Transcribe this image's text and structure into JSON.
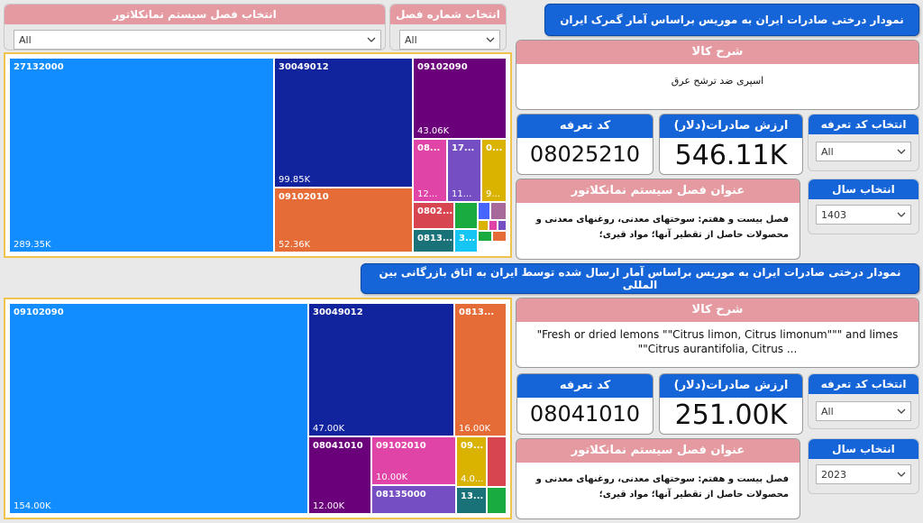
{
  "filters_top": {
    "nomenclature_label": "انتخاب فصل سیستم نمانکلاتور",
    "nomenclature_value": "All",
    "chapter_label": "انتخاب شماره فصل",
    "chapter_value": "All"
  },
  "top_section": {
    "title": "نمودار درختی صادرات ایران به موریس براساس آمار گمرک ایران",
    "goods_desc_label": "شرح کالا",
    "goods_desc_value": "اسپری ضد ترشح عرق",
    "tariff_code_label": "کد تعرفه",
    "tariff_code_value": "08025210",
    "export_value_label": "ارزش صادرات(دلار)",
    "export_value_value": "546.11K",
    "select_tariff_label": "انتخاب کد تعرفه",
    "select_tariff_value": "All",
    "chapter_title_label": "عنوان فصل سیستم نمانکلاتور",
    "chapter_title_value": "فصل بیست و هفتم: سوختهای معدنی، روغنهای معدنی و محصولات حاصل از تقطیر آنها؛ مواد قیری؛",
    "select_year_label": "انتخاب سال",
    "select_year_value": "1403"
  },
  "top_treemap": [
    {
      "label": "27132000",
      "value": "289.35K",
      "color": "#118dff"
    },
    {
      "label": "30049012",
      "value": "99.85K",
      "color": "#12239e"
    },
    {
      "label": "09102090",
      "value": "43.06K",
      "color": "#6b007b"
    },
    {
      "label": "09102010",
      "value": "52.36K",
      "color": "#e66c37"
    },
    {
      "label": "08...",
      "value": "12...",
      "color": "#e044a7"
    },
    {
      "label": "17...",
      "value": "11...",
      "color": "#744ec2"
    },
    {
      "label": "0...",
      "value": "9...",
      "color": "#d9b300"
    },
    {
      "label": "0802...",
      "value": "",
      "color": "#d64550"
    },
    {
      "label": "0813...",
      "value": "",
      "color": "#197278"
    },
    {
      "label": "",
      "value": "",
      "color": "#1aab40"
    },
    {
      "label": "3...",
      "value": "",
      "color": "#15c6f4"
    },
    {
      "label": "",
      "value": "",
      "color": "#4766ff"
    },
    {
      "label": "",
      "value": "",
      "color": "#a66999"
    },
    {
      "label": "",
      "value": "",
      "color": "#d9b300"
    },
    {
      "label": "",
      "value": "",
      "color": "#e044a7"
    },
    {
      "label": "",
      "value": "",
      "color": "#744ec2"
    },
    {
      "label": "",
      "value": "",
      "color": "#1aab40"
    },
    {
      "label": "",
      "value": "",
      "color": "#e66c37"
    }
  ],
  "bottom_section": {
    "title": "نمودار درختی صادرات ایران به  موریس براساس آمار ارسال شده توسط ایران به اتاق بازرگانی بین المللی",
    "goods_desc_label": "شرح کالا",
    "goods_desc_value": "\"Fresh or dried lemons \"\"Citrus limon, Citrus limonum\"\"\" and limes \"\"Citrus aurantifolia, Citrus ...",
    "tariff_code_label": "کد تعرفه",
    "tariff_code_value": "08041010",
    "export_value_label": "ارزش صادرات(دلار)",
    "export_value_value": "251.00K",
    "select_tariff_label": "انتخاب کد تعرفه",
    "select_tariff_value": "All",
    "chapter_title_label": "عنوان فصل سیستم نمانکلاتور",
    "chapter_title_value": "فصل بیست و هفتم: سوختهای معدنی، روغنهای معدنی و محصولات حاصل از تقطیر آنها؛ مواد قیری؛",
    "select_year_label": "انتخاب سال",
    "select_year_value": "2023"
  },
  "bottom_treemap": [
    {
      "label": "09102090",
      "value": "154.00K",
      "color": "#118dff"
    },
    {
      "label": "30049012",
      "value": "47.00K",
      "color": "#12239e"
    },
    {
      "label": "0813...",
      "value": "16.00K",
      "color": "#e66c37"
    },
    {
      "label": "08041010",
      "value": "12.00K",
      "color": "#6b007b"
    },
    {
      "label": "09102010",
      "value": "10.00K",
      "color": "#e044a7"
    },
    {
      "label": "09...",
      "value": "4.0...",
      "color": "#d9b300"
    },
    {
      "label": "",
      "value": "",
      "color": "#d64550"
    },
    {
      "label": "08135000",
      "value": "",
      "color": "#744ec2"
    },
    {
      "label": "13...",
      "value": "",
      "color": "#197278"
    },
    {
      "label": "",
      "value": "",
      "color": "#1aab40"
    }
  ],
  "icons": {
    "dropdown": "chevron-down-icon"
  }
}
